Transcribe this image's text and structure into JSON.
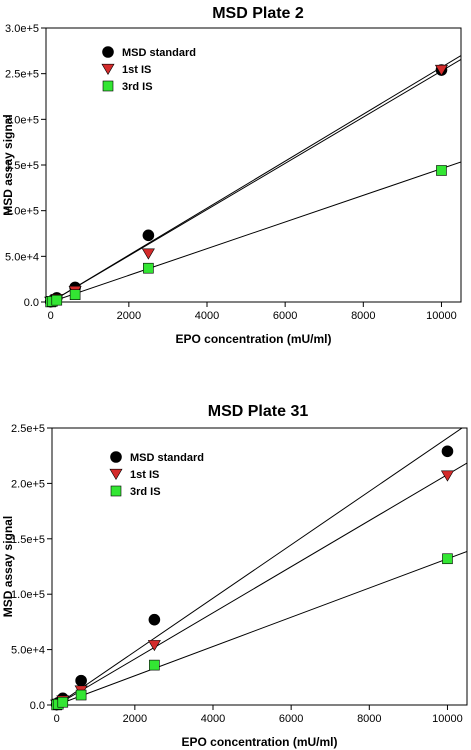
{
  "chart_data": [
    {
      "type": "scatter",
      "title": "MSD Plate 2",
      "xlabel": "EPO concentration (mU/ml)",
      "ylabel": "MSD assay signal",
      "xlim": [
        -120,
        10500
      ],
      "ylim": [
        0,
        300000
      ],
      "xticks": [
        0,
        2000,
        4000,
        6000,
        8000,
        10000
      ],
      "xtick_labels": [
        "0",
        "2000",
        "4000",
        "6000",
        "8000",
        "10000"
      ],
      "yticks": [
        0,
        50000,
        100000,
        150000,
        200000,
        250000,
        300000
      ],
      "ytick_labels": [
        "0.0",
        "5.0e+4",
        "1.0e+5",
        "1.5e+5",
        "2.0e+5",
        "2.5e+5",
        "3.0e+5"
      ],
      "legend_position": "top-left",
      "grid": false,
      "series": [
        {
          "name": "MSD standard",
          "marker": "circle",
          "color": "#000000",
          "x": [
            0,
            39,
            156,
            625,
            2500,
            10000
          ],
          "y": [
            400,
            1500,
            4500,
            16000,
            73000,
            254000
          ],
          "fit": {
            "slope": 25.7,
            "intercept": 0
          }
        },
        {
          "name": "1st IS",
          "marker": "triangle-down",
          "color": "#d42b2b",
          "x": [
            0,
            39,
            156,
            625,
            2500,
            10000
          ],
          "y": [
            200,
            1000,
            3000,
            12000,
            53000,
            254000
          ],
          "fit": {
            "slope": 25.3,
            "intercept": 0
          }
        },
        {
          "name": "3rd IS",
          "marker": "square",
          "color": "#33e633",
          "x": [
            0,
            39,
            156,
            625,
            2500,
            10000
          ],
          "y": [
            100,
            700,
            2000,
            8000,
            37000,
            144000
          ],
          "fit": {
            "slope": 14.6,
            "intercept": 0
          }
        }
      ]
    },
    {
      "type": "scatter",
      "title": "MSD Plate 31",
      "xlabel": "EPO concentration (mU/ml)",
      "ylabel": "MSD assay signal",
      "xlim": [
        -120,
        10500
      ],
      "ylim": [
        0,
        250000
      ],
      "xticks": [
        0,
        2000,
        4000,
        6000,
        8000,
        10000
      ],
      "xtick_labels": [
        "0",
        "2000",
        "4000",
        "6000",
        "8000",
        "10000"
      ],
      "yticks": [
        0,
        50000,
        100000,
        150000,
        200000,
        250000
      ],
      "ytick_labels": [
        "0.0",
        "5.0e+4",
        "1.0e+5",
        "1.5e+5",
        "2.0e+5",
        "2.5e+5"
      ],
      "legend_position": "top-left",
      "grid": false,
      "series": [
        {
          "name": "MSD standard",
          "marker": "circle",
          "color": "#000000",
          "x": [
            0,
            39,
            156,
            625,
            2500,
            10000
          ],
          "y": [
            400,
            2000,
            6000,
            22000,
            77000,
            229000
          ],
          "fit": {
            "slope": 24.1,
            "intercept": 0
          }
        },
        {
          "name": "1st IS",
          "marker": "triangle-down",
          "color": "#d42b2b",
          "x": [
            0,
            39,
            156,
            625,
            2500,
            10000
          ],
          "y": [
            200,
            1000,
            4000,
            13000,
            54000,
            207000
          ],
          "fit": {
            "slope": 20.8,
            "intercept": 0
          }
        },
        {
          "name": "3rd IS",
          "marker": "square",
          "color": "#33e633",
          "x": [
            0,
            39,
            156,
            625,
            2500,
            10000
          ],
          "y": [
            100,
            700,
            2500,
            9000,
            36000,
            132000
          ],
          "fit": {
            "slope": 13.2,
            "intercept": 0
          }
        }
      ]
    }
  ]
}
